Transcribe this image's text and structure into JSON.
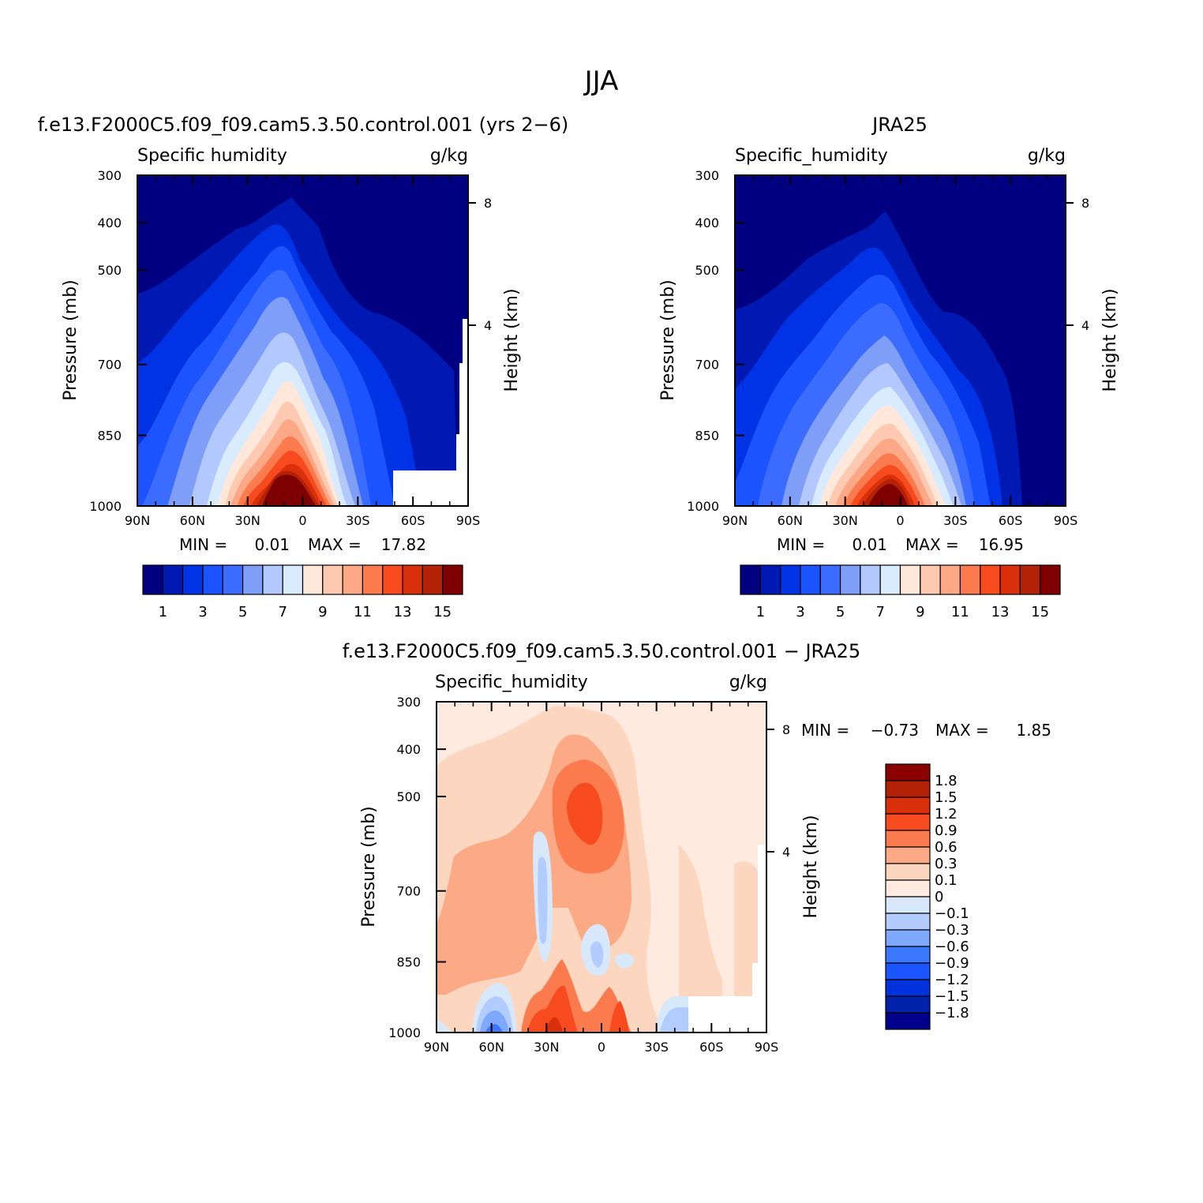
{
  "page": {
    "title": "JJA"
  },
  "colors": {
    "model_palette": [
      "#000080",
      "#0019b3",
      "#0033e6",
      "#1a53ff",
      "#3b6cff",
      "#7f9ef7",
      "#b3c8ff",
      "#d9ebff",
      "#ffe8d9",
      "#fdc9b1",
      "#fca785",
      "#fb7b4e",
      "#f74b1f",
      "#d9300b",
      "#b32206",
      "#7f0000"
    ],
    "diff_palette": [
      "#00008c",
      "#0022aa",
      "#0033dd",
      "#1a55ff",
      "#3b77ff",
      "#7fa8ff",
      "#b3ccff",
      "#d6e8fa",
      "#feeadf",
      "#fdd6c0",
      "#fcaa86",
      "#fb7b4e",
      "#f74b1f",
      "#d9300b",
      "#b32206",
      "#8b0000"
    ]
  },
  "chart_data": [
    {
      "type": "heatmap",
      "id": "model",
      "title": "f.e13.F2000C5.f09_f09.cam5.3.50.control.001 (yrs 2−6)",
      "left_label": "Specific humidity",
      "units": "g/kg",
      "ylabel": "Pressure (mb)",
      "ylabel_right": "Height (km)",
      "x_ticks": [
        "90N",
        "60N",
        "30N",
        "0",
        "30S",
        "60S",
        "90S"
      ],
      "y_ticks": [
        "300",
        "400",
        "500",
        "700",
        "850",
        "1000"
      ],
      "y_ticks_right": [
        "8",
        "4"
      ],
      "min_label": "MIN =",
      "min": "0.01",
      "max_label": "MAX =",
      "max": "17.82",
      "levels": [
        1,
        2,
        3,
        4,
        5,
        6,
        7,
        8,
        9,
        10,
        11,
        12,
        13,
        14,
        15
      ],
      "colorbar_labels": [
        "1",
        "3",
        "5",
        "7",
        "9",
        "11",
        "13",
        "15"
      ],
      "missing_region": "60S-90S near surface",
      "approx_peak": {
        "lat": "10N",
        "pressure": 1000,
        "value": 17.82
      }
    },
    {
      "type": "heatmap",
      "id": "obs",
      "title": "JRA25",
      "left_label": "Specific_humidity",
      "units": "g/kg",
      "ylabel": "Pressure (mb)",
      "ylabel_right": "Height (km)",
      "x_ticks": [
        "90N",
        "60N",
        "30N",
        "0",
        "30S",
        "60S",
        "90S"
      ],
      "y_ticks": [
        "300",
        "400",
        "500",
        "700",
        "850",
        "1000"
      ],
      "y_ticks_right": [
        "8",
        "4"
      ],
      "min_label": "MIN =",
      "min": "0.01",
      "max_label": "MAX =",
      "max": "16.95",
      "levels": [
        1,
        2,
        3,
        4,
        5,
        6,
        7,
        8,
        9,
        10,
        11,
        12,
        13,
        14,
        15
      ],
      "colorbar_labels": [
        "1",
        "3",
        "5",
        "7",
        "9",
        "11",
        "13",
        "15"
      ],
      "approx_peak": {
        "lat": "10N",
        "pressure": 1000,
        "value": 16.95
      }
    },
    {
      "type": "heatmap",
      "id": "diff",
      "title": "f.e13.F2000C5.f09_f09.cam5.3.50.control.001 − JRA25",
      "left_label": "Specific_humidity",
      "units": "g/kg",
      "ylabel": "Pressure (mb)",
      "ylabel_right": "Height (km)",
      "x_ticks": [
        "90N",
        "60N",
        "30N",
        "0",
        "30S",
        "60S",
        "90S"
      ],
      "y_ticks": [
        "300",
        "400",
        "500",
        "700",
        "850",
        "1000"
      ],
      "y_ticks_right": [
        "8",
        "4"
      ],
      "min_label": "MIN =",
      "min": "−0.73",
      "max_label": "MAX =",
      "max": "1.85",
      "levels": [
        "1.8",
        "1.5",
        "1.2",
        "0.9",
        "0.6",
        "0.3",
        "0.1",
        "0",
        "−0.1",
        "−0.3",
        "−0.6",
        "−0.9",
        "−1.2",
        "−1.5",
        "−1.8"
      ],
      "colorbar_labels": [
        "1.8",
        "1.5",
        "1.2",
        "0.9",
        "0.6",
        "0.3",
        "0.1",
        "0",
        "−0.1",
        "−0.3",
        "−0.6",
        "−0.9",
        "−1.2",
        "−1.5",
        "−1.8"
      ],
      "features": [
        {
          "name": "mid-level moist maximum",
          "lat": "10N",
          "pressure": 550,
          "value": 1.2
        },
        {
          "name": "low-level dry bias",
          "lat": "55N",
          "pressure": 950,
          "value": -0.6
        },
        {
          "name": "tropical band dry streak",
          "lat": "25N",
          "pressure": 720,
          "value": -0.3
        }
      ]
    }
  ]
}
